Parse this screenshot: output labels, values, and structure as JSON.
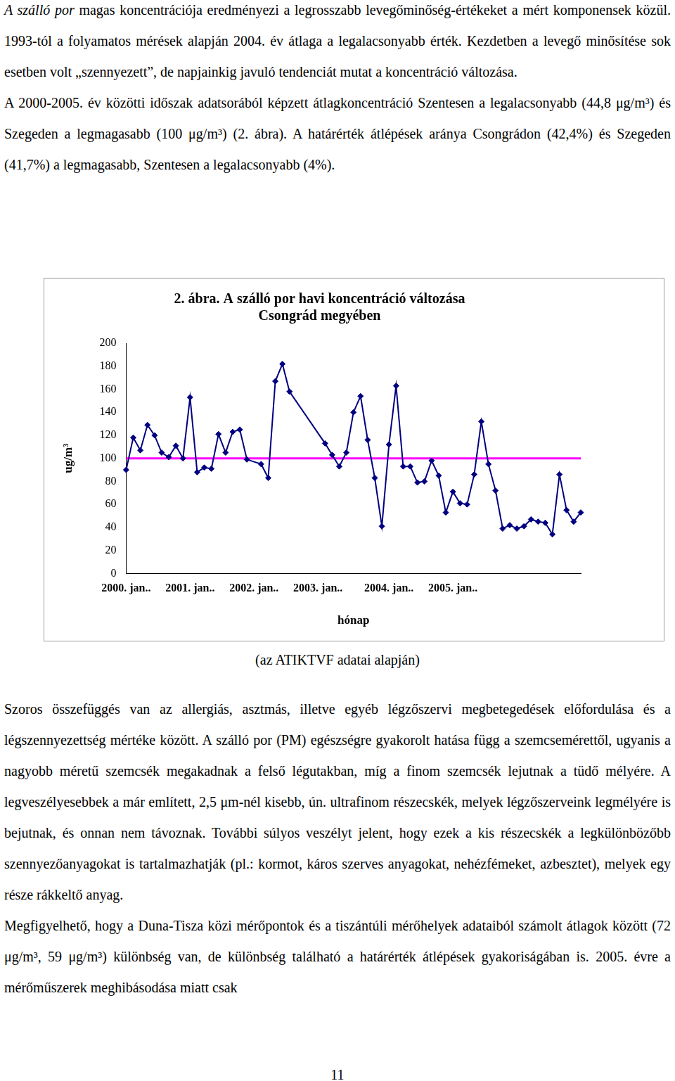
{
  "document": {
    "paragraphs_before": [
      [
        {
          "text": "A szálló por",
          "italic": true
        },
        {
          "text": " magas koncentrációja eredményezi a legrosszabb levegőminőség-értékeket a mért komponensek közül. 1993-tól a folyamatos mérések alapján 2004. év átlaga a legalacsonyabb érték. Kezdetben a levegő minősítése sok esetben volt „szennyezett”, de napjainkig javuló tendenciát mutat a koncentráció változása."
        }
      ],
      [
        {
          "text": "A 2000-2005. év közötti időszak adatsorából képzett átlagkoncentráció Szentesen a legalacsonyabb (44,8 μg/m³) és Szegeden a legmagasabb (100 μg/m³) (2. ábra). A határérték átlépések aránya Csongrádon (42,4%) és Szegeden (41,7%) a legmagasabb, Szentesen a legalacsonyabb (4%)."
        }
      ]
    ],
    "caption": "(az ATIKTVF adatai alapján)",
    "paragraphs_after": [
      [
        {
          "text": "Szoros összefüggés van az allergiás, asztmás, illetve egyéb légzőszervi megbetegedések előfordulása és a légszennyezettség mértéke között. A szálló por (PM) egészségre gyakorolt hatása függ a szemcsemérettől, ugyanis a nagyobb méretű szemcsék megakadnak a felső légutakban, míg a finom szemcsék lejutnak a tüdő mélyére. A legveszélyesebbek a már említett, 2,5 μm-nél kisebb, ún. ultrafinom részecskék, melyek légzőszerveink legmélyére is bejutnak, és onnan nem távoznak. További súlyos veszélyt jelent, hogy ezek a kis részecskék a legkülönbözőbb szennyezőanyagokat is tartalmazhatják (pl.: kormot, káros szerves anyagokat, nehézfémeket, azbesztet), melyek egy része rákkeltő anyag."
        }
      ],
      [
        {
          "text": "Megfigyelhető, hogy a Duna-Tisza közi mérőpontok és a tiszántúli mérőhelyek adataiból számolt átlagok között (72 μg/m³, 59 μg/m³) különbség van, de különbség található a határérték átlépések gyakoriságában is. 2005. évre a mérőműszerek meghibásodása miatt csak"
        }
      ]
    ],
    "page_number": 11
  },
  "chart_data": {
    "type": "line",
    "title": [
      "2. ábra. A szálló por havi koncentráció változása",
      "Csongrád megyében"
    ],
    "x_label": "hónap",
    "y_label": "ug/m³",
    "categories": [
      "2000. jan..",
      null,
      null,
      null,
      null,
      null,
      null,
      null,
      null,
      "2001. jan..",
      null,
      null,
      null,
      null,
      null,
      null,
      null,
      null,
      "2002. jan..",
      null,
      null,
      null,
      null,
      null,
      null,
      null,
      null,
      "2003. jan..",
      null,
      null,
      null,
      null,
      null,
      null,
      null,
      null,
      null,
      "2004. jan..",
      null,
      null,
      null,
      null,
      null,
      null,
      null,
      null,
      "2005. jan..",
      null,
      null,
      null,
      null,
      null,
      null,
      null,
      null,
      null,
      null,
      null,
      null,
      null,
      null,
      null,
      null,
      null,
      null
    ],
    "series": [
      {
        "color": "#000080",
        "marker": "diamond",
        "values": [
          90,
          118,
          107,
          129,
          120,
          105,
          101,
          111,
          100,
          153,
          88,
          92,
          91,
          121,
          105,
          123,
          125,
          99,
          null,
          95,
          83,
          167,
          182,
          158,
          null,
          null,
          null,
          null,
          113,
          103,
          93,
          105,
          140,
          154,
          116,
          83,
          41,
          112,
          163,
          93,
          93,
          79,
          80,
          98,
          85,
          53,
          71,
          61,
          60,
          86,
          132,
          95,
          72,
          39,
          42,
          39,
          41,
          47,
          45,
          44,
          34,
          86,
          55,
          45,
          53
        ]
      }
    ],
    "reference_line": {
      "value": 100,
      "color": "#ff00ff"
    },
    "ylim": [
      0,
      200
    ],
    "yticks": [
      0,
      20,
      40,
      60,
      80,
      100,
      120,
      140,
      160,
      180,
      200
    ],
    "grid": false
  }
}
